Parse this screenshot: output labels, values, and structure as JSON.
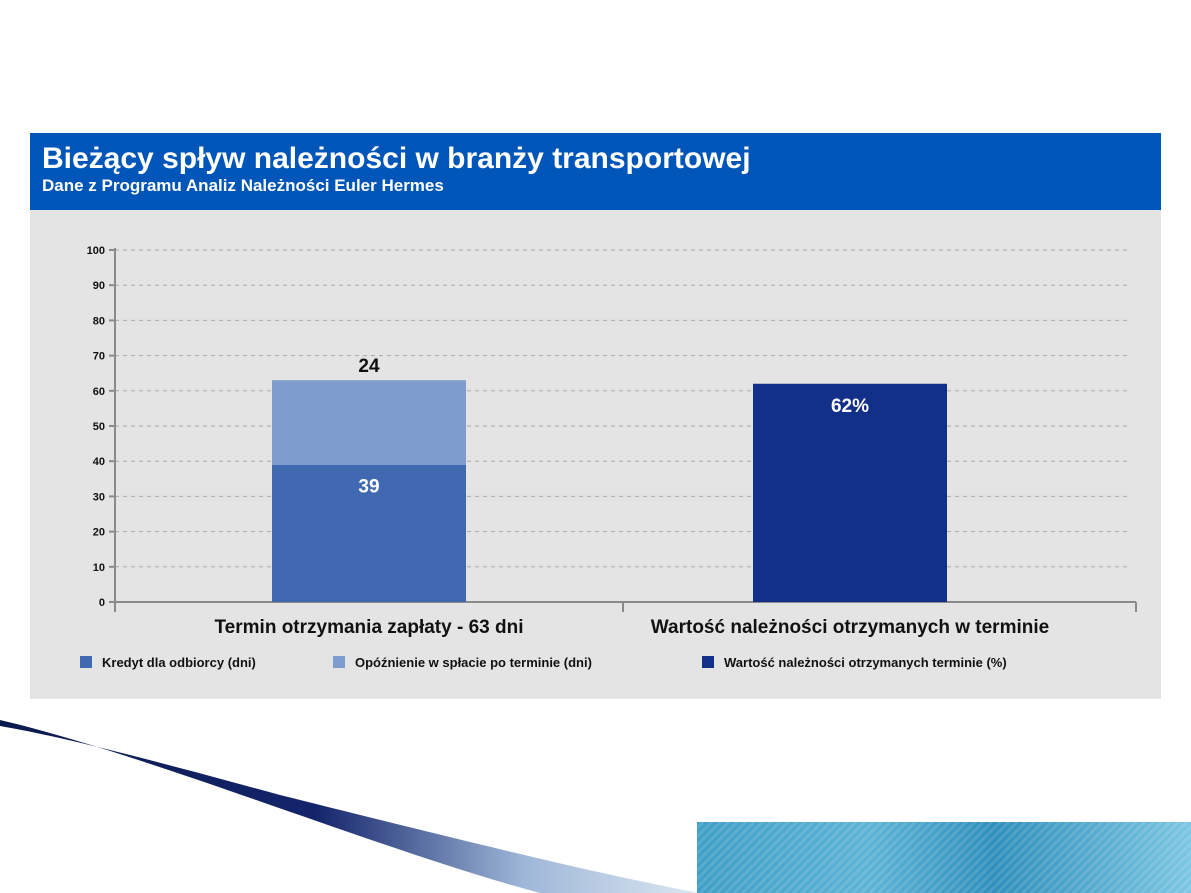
{
  "colors": {
    "header_bg": "#0055b8",
    "panel_bg": "#e4e4e4",
    "credit": "#4169b2",
    "delay": "#7f9ccf",
    "ontime": "#133089",
    "grid": "#a8a8a8",
    "axis": "#8a8a8a"
  },
  "chart_data": {
    "type": "bar",
    "title": "Bieżący spływ należności w branży transportowej",
    "subtitle": "Dane z Programu Analiz Należności Euler Hermes",
    "ylim": [
      0,
      100
    ],
    "yticks": [
      "0",
      "10",
      "20",
      "30",
      "40",
      "50",
      "60",
      "70",
      "80",
      "90",
      "100"
    ],
    "grid": true,
    "categories": [
      "Termin otrzymania zapłaty - 63 dni",
      "Wartość należności otrzymanych w terminie"
    ],
    "series": [
      {
        "name": "Kredyt dla odbiorcy (dni)",
        "values": [
          39,
          0
        ],
        "labels": [
          "39",
          ""
        ]
      },
      {
        "name": "Opóźnienie w spłacie po terminie (dni)",
        "values": [
          24,
          0
        ],
        "labels": [
          "24",
          ""
        ]
      },
      {
        "name": "Wartość należności otrzymanych terminie (%)",
        "values": [
          0,
          62
        ],
        "labels": [
          "",
          "62%"
        ]
      }
    ],
    "legend_position": "bottom"
  }
}
